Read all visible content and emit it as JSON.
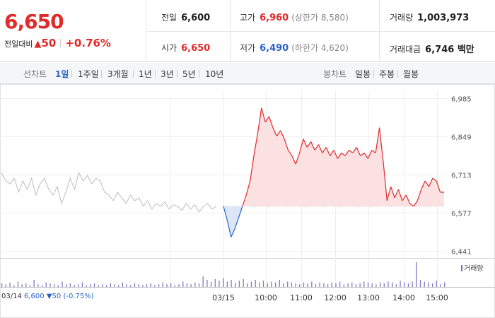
{
  "summary": {
    "price": "6,650",
    "change_label": "전일대비",
    "change_symbol": "▲",
    "change_amount": "50",
    "change_pct": "+0.76%",
    "prev_close_label": "전일",
    "prev_close": "6,600",
    "open_label": "시가",
    "open": "6,650",
    "high_label": "고가",
    "high": "6,960",
    "upper_limit": "(상한가 8,580)",
    "low_label": "저가",
    "low": "6,490",
    "lower_limit": "(하한가 4,620)",
    "volume_label": "거래량",
    "volume": "1,003,973",
    "value_label": "거래대금",
    "value": "6,746 백만"
  },
  "tabs": {
    "line_label": "선차트",
    "line": [
      "1일",
      "1주일",
      "3개월",
      "1년",
      "3년",
      "5년",
      "10년"
    ],
    "active": "1일",
    "candle_label": "봉차트",
    "candle": [
      "일봉",
      "주봉",
      "월봉"
    ]
  },
  "chart_data": {
    "type": "line",
    "y_ticks": [
      "6,985",
      "6,849",
      "6,713",
      "6,577",
      "6,441"
    ],
    "ylim": [
      6441,
      6985
    ],
    "reference_price": 6600,
    "x_labels": [
      "03/14",
      "03/15",
      "10:00",
      "11:00",
      "12:00",
      "13:00",
      "14:00",
      "15:00"
    ],
    "volume_legend": "거래량",
    "prev_day": {
      "date": "03/14",
      "close": "6,600",
      "change": "▼50",
      "pct": "(-0.75%)",
      "values": [
        6720,
        6690,
        6680,
        6700,
        6650,
        6690,
        6660,
        6700,
        6640,
        6680,
        6700,
        6660,
        6640,
        6670,
        6610,
        6650,
        6700,
        6660,
        6720,
        6690,
        6710,
        6680,
        6700,
        6690,
        6650,
        6640,
        6620,
        6650,
        6630,
        6610,
        6640,
        6620,
        6630,
        6600,
        6620,
        6590,
        6610,
        6600,
        6615,
        6590,
        6605,
        6600,
        6585,
        6610,
        6590,
        6605,
        6580,
        6600,
        6610,
        6590,
        6600
      ]
    },
    "today": {
      "series": [
        {
          "name": "",
          "values": [
            6600,
            6550,
            6490,
            6520,
            6560,
            6600,
            6640,
            6690,
            6780,
            6860,
            6950,
            6900,
            6920,
            6880,
            6850,
            6870,
            6840,
            6800,
            6780,
            6750,
            6790,
            6840,
            6810,
            6830,
            6800,
            6820,
            6790,
            6810,
            6780,
            6800,
            6770,
            6790,
            6780,
            6800,
            6790,
            6810,
            6780,
            6790,
            6770,
            6800,
            6790,
            6880,
            6760,
            6620,
            6670,
            6630,
            6660,
            6620,
            6640,
            6610,
            6600,
            6620,
            6660,
            6690,
            6670,
            6700,
            6690,
            6650,
            6650
          ]
        }
      ]
    },
    "volume": [
      4,
      3,
      5,
      2,
      6,
      3,
      4,
      2,
      8,
      3,
      2,
      5,
      4,
      3,
      2,
      6,
      3,
      4,
      2,
      3,
      5,
      2,
      3,
      4,
      2,
      3,
      2,
      4,
      3,
      2,
      5,
      3,
      2,
      4,
      3,
      2,
      3,
      4,
      2,
      3,
      5,
      3,
      4,
      2,
      3,
      6,
      4,
      3,
      5,
      4,
      12,
      8,
      6,
      9,
      7,
      10,
      6,
      8,
      5,
      7,
      9,
      4,
      6,
      8,
      5,
      7,
      4,
      6,
      5,
      8,
      4,
      6,
      5,
      4,
      3,
      5,
      4,
      6,
      3,
      5,
      4,
      3,
      5,
      4,
      6,
      3,
      4,
      5,
      3,
      4,
      6,
      5,
      4,
      3,
      5,
      4,
      6,
      5,
      3,
      7,
      5,
      4,
      6,
      28,
      8,
      6,
      5,
      4,
      7,
      3,
      5
    ]
  }
}
